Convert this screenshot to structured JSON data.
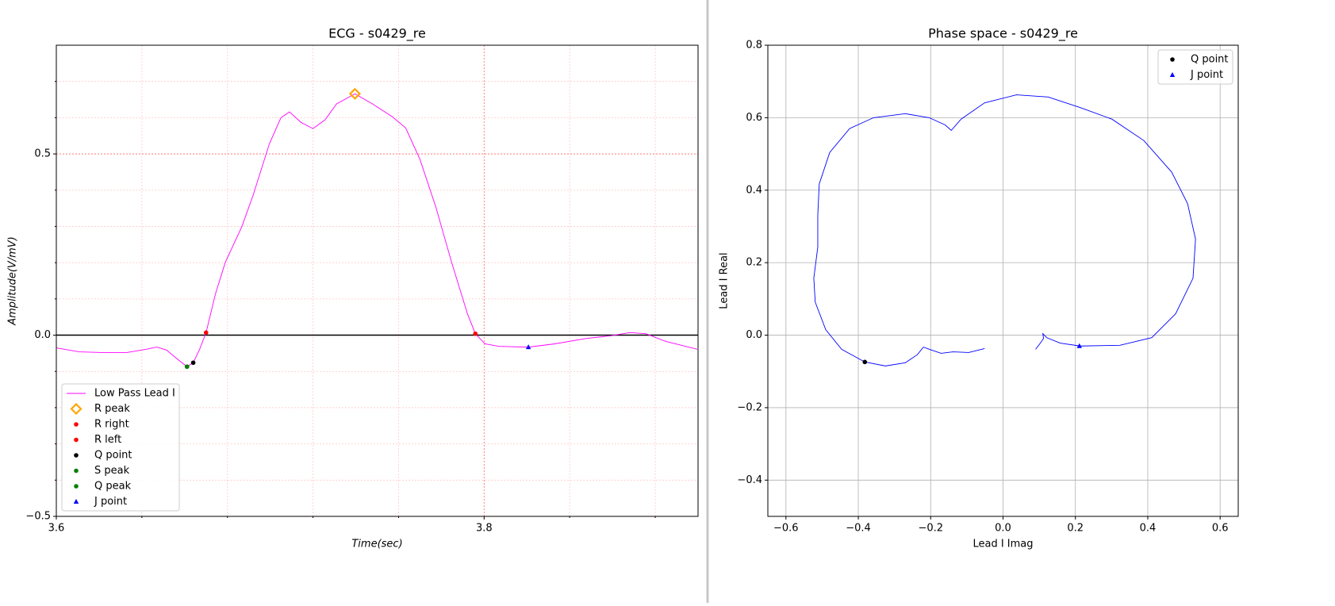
{
  "chart_data": [
    {
      "type": "line",
      "title": "ECG - s0429_re",
      "xlabel": "Time(sec)",
      "ylabel": "Amplitude(V/mV)",
      "label_style": "italic",
      "xlim": [
        3.6,
        3.9
      ],
      "ylim": [
        -0.5,
        0.8
      ],
      "xticks": [
        3.6,
        3.8
      ],
      "yticks": [
        {
          "value": -0.5,
          "label": "−0.5"
        },
        {
          "value": 0,
          "label": "0.0"
        },
        0.5
      ],
      "x_minor_ticks": [
        3.64,
        3.68,
        3.72,
        3.76,
        3.84,
        3.88
      ],
      "y_minor_ticks": [
        -0.4,
        -0.3,
        -0.2,
        -0.1,
        0.1,
        0.2,
        0.3,
        0.4,
        0.6,
        0.7
      ],
      "grid": true,
      "grid_color": "#ff6666",
      "grid_style": "dotted",
      "minor_grid_color": "#ffc8c8",
      "hline": 0,
      "hline_color": "#000000",
      "legend": "lower left",
      "series": [
        {
          "name": "Low Pass Lead I",
          "color": "#ff00ff",
          "x": [
            3.6,
            3.6107,
            3.6219,
            3.633,
            3.642,
            3.647,
            3.6515,
            3.657,
            3.6611,
            3.664,
            3.667,
            3.67,
            3.6744,
            3.679,
            3.6867,
            3.692,
            3.6996,
            3.705,
            3.709,
            3.7144,
            3.72,
            3.7256,
            3.731,
            3.7396,
            3.7478,
            3.757,
            3.7633,
            3.77,
            3.7774,
            3.7848,
            3.7922,
            3.7959,
            3.8004,
            3.807,
            3.8207,
            3.833,
            3.8478,
            3.8589,
            3.8681,
            3.8756,
            3.8848,
            3.8996
          ],
          "y": [
            -0.035,
            -0.046,
            -0.048,
            -0.048,
            -0.039,
            -0.033,
            -0.041,
            -0.068,
            -0.087,
            -0.076,
            -0.039,
            0.007,
            0.114,
            0.201,
            0.299,
            0.386,
            0.528,
            0.6,
            0.616,
            0.587,
            0.57,
            0.594,
            0.638,
            0.666,
            0.638,
            0.603,
            0.572,
            0.485,
            0.354,
            0.201,
            0.059,
            0.004,
            -0.024,
            -0.031,
            -0.033,
            -0.024,
            -0.009,
            -0.002,
            0.007,
            0.004,
            -0.017,
            -0.039
          ]
        },
        {
          "name": "R peak",
          "color": "#ffa500",
          "marker": "diamond",
          "x": [
            3.7396
          ],
          "y": [
            0.666
          ]
        },
        {
          "name": "R right",
          "color": "#ff0000",
          "marker": "circle",
          "x": [
            3.7959
          ],
          "y": [
            0.004
          ]
        },
        {
          "name": "R left",
          "color": "#ff0000",
          "marker": "circle",
          "x": [
            3.67
          ],
          "y": [
            0.007
          ]
        },
        {
          "name": "Q point",
          "color": "#000000",
          "marker": "circle",
          "x": [
            3.664
          ],
          "y": [
            -0.076
          ]
        },
        {
          "name": "S peak",
          "color": "#008000",
          "marker": "circle",
          "x": [
            3.6611
          ],
          "y": [
            -0.087
          ]
        },
        {
          "name": "Q peak",
          "color": "#008000",
          "marker": "circle",
          "x": [
            3.6611
          ],
          "y": [
            -0.087
          ]
        },
        {
          "name": "J point",
          "color": "#0000ff",
          "marker": "triangle",
          "x": [
            3.8207
          ],
          "y": [
            -0.033
          ]
        }
      ]
    },
    {
      "type": "line",
      "title": "Phase space - s0429_re",
      "xlabel": "Lead I Imag",
      "ylabel": "Lead I Real",
      "label_style": "normal",
      "xlim": [
        -0.65,
        0.65
      ],
      "ylim": [
        -0.5,
        0.8
      ],
      "xticks": [
        {
          "value": -0.6,
          "label": "−0.6"
        },
        {
          "value": -0.4,
          "label": "−0.4"
        },
        {
          "value": -0.2,
          "label": "−0.2"
        },
        {
          "value": 0,
          "label": "0.0"
        },
        0.2,
        0.4,
        0.6
      ],
      "yticks": [
        {
          "value": -0.4,
          "label": "−0.4"
        },
        {
          "value": -0.2,
          "label": "−0.2"
        },
        {
          "value": 0,
          "label": "0.0"
        },
        0.2,
        0.4,
        0.6,
        0.8
      ],
      "grid": true,
      "grid_color": "#b0b0b0",
      "grid_style": "solid",
      "legend": "upper right",
      "series": [
        {
          "name": null,
          "color": "#0000ff",
          "x": [
            -0.051,
            -0.095,
            -0.138,
            -0.171,
            -0.204,
            -0.22,
            -0.237,
            -0.27,
            -0.325,
            -0.382,
            -0.446,
            -0.49,
            -0.519,
            -0.523,
            -0.512,
            -0.512,
            -0.508,
            -0.479,
            -0.424,
            -0.358,
            -0.27,
            -0.204,
            -0.16,
            -0.143,
            -0.116,
            -0.051,
            0.037,
            0.125,
            0.213,
            0.301,
            0.389,
            0.466,
            0.51,
            0.532,
            0.525,
            0.477,
            0.411,
            0.323,
            0.213,
            0.158,
            0.121,
            0.11,
            0.112,
            0.103,
            0.09
          ],
          "y": [
            -0.037,
            -0.048,
            -0.046,
            -0.05,
            -0.039,
            -0.033,
            -0.054,
            -0.076,
            -0.085,
            -0.074,
            -0.039,
            0.015,
            0.091,
            0.157,
            0.243,
            0.33,
            0.417,
            0.504,
            0.57,
            0.6,
            0.611,
            0.6,
            0.58,
            0.565,
            0.596,
            0.641,
            0.663,
            0.657,
            0.628,
            0.596,
            0.537,
            0.45,
            0.363,
            0.265,
            0.157,
            0.059,
            -0.007,
            -0.028,
            -0.03,
            -0.022,
            -0.007,
            0.004,
            -0.009,
            -0.022,
            -0.039
          ]
        },
        {
          "name": "Q point",
          "color": "#000000",
          "marker": "circle",
          "x": [
            -0.382
          ],
          "y": [
            -0.074
          ]
        },
        {
          "name": "J point",
          "color": "#0000ff",
          "marker": "triangle",
          "x": [
            0.211
          ],
          "y": [
            -0.03
          ]
        }
      ]
    }
  ]
}
